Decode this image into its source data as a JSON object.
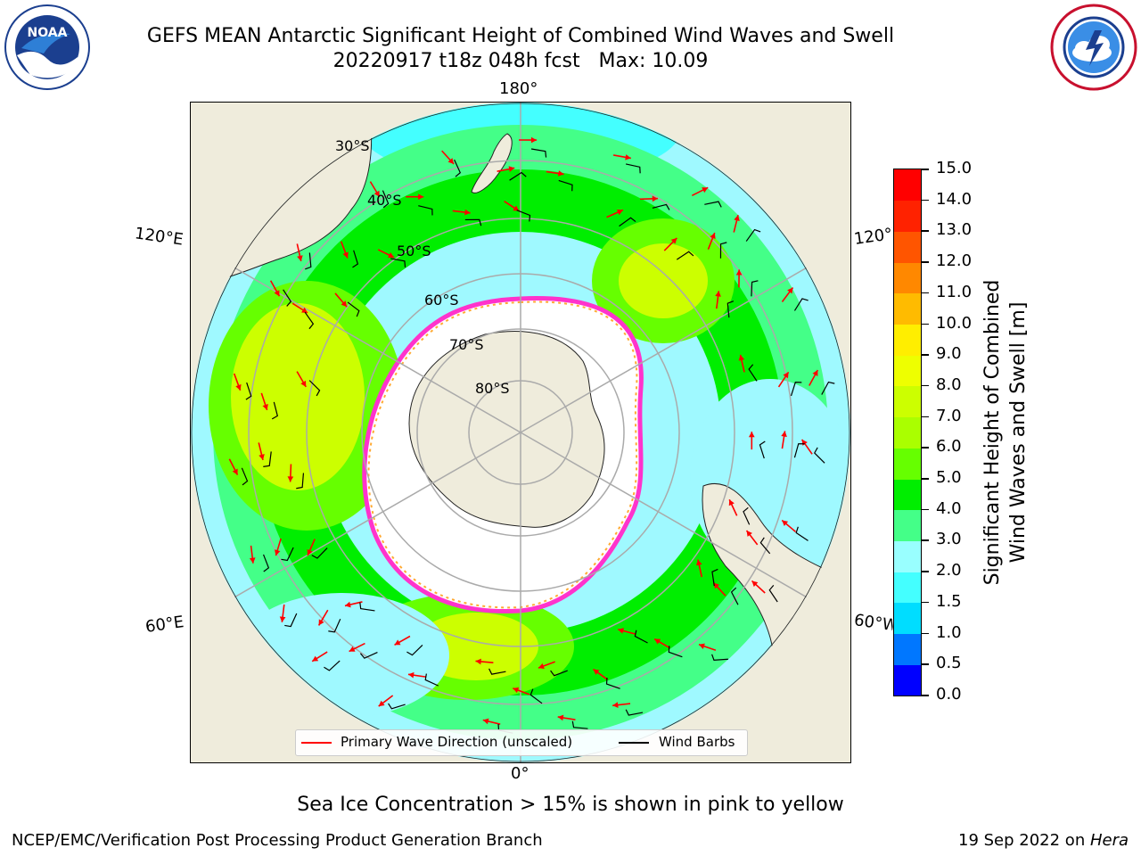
{
  "header": {
    "title_line1": "GEFS MEAN Antarctic Significant Height of Combined Wind Waves and Swell",
    "title_line2": "20220917 t18z 048h fcst   Max: 10.09"
  },
  "logos": {
    "left": {
      "icon": "noaa-logo-icon",
      "text": "NOAA",
      "ring_text": "NATIONAL OCEANIC AND ATMOSPHERIC ADMINISTRATION · U.S. DEPARTMENT OF COMMERCE"
    },
    "right": {
      "icon": "nws-logo-icon",
      "ring_text": "NATIONAL WEATHER SERVICE"
    }
  },
  "map": {
    "projection": "south-polar-stereographic",
    "lon_labels": {
      "top": "180°",
      "bottom": "0°",
      "upper_left": "120°E",
      "lower_left": "60°E",
      "upper_right": "120°W",
      "lower_right": "60°W"
    },
    "lat_labels": [
      "30°S",
      "40°S",
      "50°S",
      "60°S",
      "70°S",
      "80°S"
    ],
    "land_color": "#efecdc",
    "ice_edge_colors": [
      "#ff33cc",
      "#ffaa33"
    ]
  },
  "legend": {
    "items": [
      {
        "label": "Primary Wave Direction (unscaled)",
        "color": "#ff0000"
      },
      {
        "label": "Wind Barbs",
        "color": "#000000"
      }
    ]
  },
  "colorbar": {
    "title_line1": "Significant Height of Combined",
    "title_line2": "Wind Waves and Swell [m]",
    "ticks": [
      "0.0",
      "0.5",
      "1.0",
      "1.5",
      "2.0",
      "3.0",
      "4.0",
      "5.0",
      "6.0",
      "7.0",
      "8.0",
      "9.0",
      "10.0",
      "11.0",
      "12.0",
      "13.0",
      "14.0",
      "15.0"
    ],
    "colors": [
      "#0000ff",
      "#0077ff",
      "#00ddff",
      "#44ffff",
      "#99ffff",
      "#44ff88",
      "#00ee00",
      "#66ff00",
      "#aaff00",
      "#ccff00",
      "#eeff00",
      "#ffee00",
      "#ffbb00",
      "#ff8800",
      "#ff5500",
      "#ff2200",
      "#ff0000"
    ]
  },
  "caption": "Sea Ice Concentration > 15% is shown in pink to yellow",
  "footer": {
    "left": "NCEP/EMC/Verification Post Processing Product Generation Branch",
    "right_date": "19 Sep 2022 on ",
    "right_host": "Hera"
  }
}
